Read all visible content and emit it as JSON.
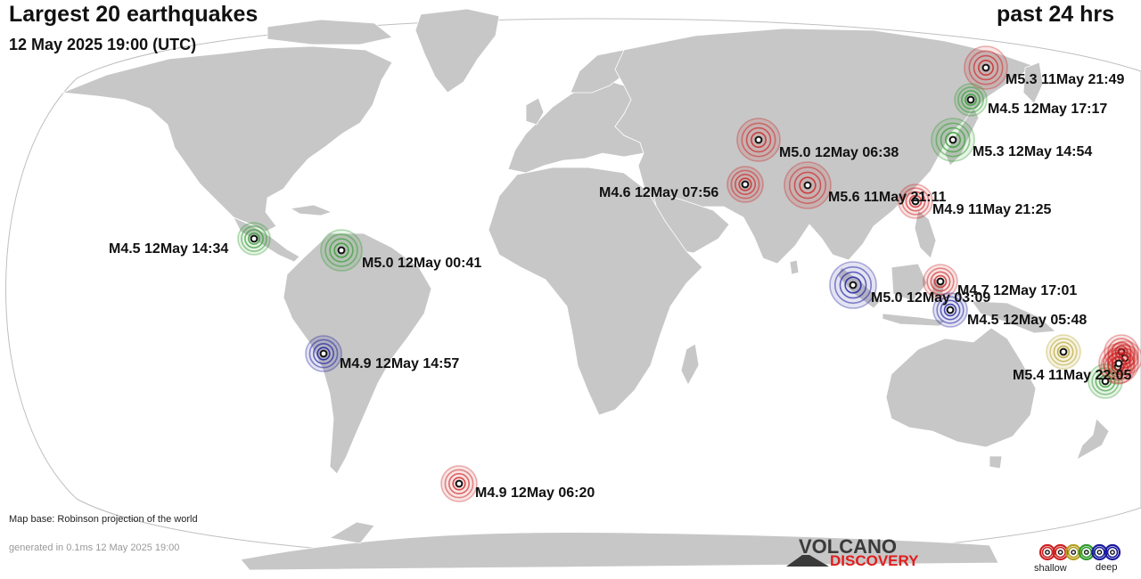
{
  "header": {
    "title": "Largest 20 earthquakes",
    "subtitle": "12 May 2025 19:00 (UTC)",
    "period": "past 24 hrs"
  },
  "footer": {
    "map_base": "Map base: Robinson projection of the world",
    "generated": "generated in 0.1ms 12 May 2025 19:00"
  },
  "logo": {
    "line1": "VOLCANO",
    "line2": "DISCOVERY"
  },
  "legend": {
    "shallow": "shallow",
    "deep": "deep",
    "depth_colors": [
      "#cc2222",
      "#cc2222",
      "#b3a020",
      "#2e9a2e",
      "#1a1a9c",
      "#1a1a9c"
    ]
  },
  "colors": {
    "ocean": "#ffffff",
    "land": "#c7c7c7",
    "shallow": "#cc2222",
    "intermediate": "#b3a020",
    "mid_deep": "#2e9a2e",
    "deep": "#1a1a9c"
  },
  "earthquakes": [
    {
      "label": "M5.3 11May 21:49",
      "lat": 50.1,
      "lon": 157.9,
      "depth": "shallow"
    },
    {
      "label": "M4.5 12May 17:17",
      "lat": 42.3,
      "lon": 143.2,
      "depth": "mid"
    },
    {
      "label": "M5.3 12May 14:54",
      "lat": 35.6,
      "lon": 141.0,
      "depth": "mid"
    },
    {
      "label": "M5.0 12May 06:38",
      "lat": 36.5,
      "lon": 71.2,
      "depth": "shallow"
    },
    {
      "label": "M4.6 12May 07:56",
      "lat": 29.0,
      "lon": 57.9,
      "depth": "shallow"
    },
    {
      "label": "M5.6 11May 21:11",
      "lat": 28.2,
      "lon": 84.6,
      "depth": "shallow"
    },
    {
      "label": "M4.9 11May 21:25",
      "lat": 22.9,
      "lon": 121.4,
      "depth": "shallow"
    },
    {
      "label": "M4.5 12May 14:34",
      "lat": 13.7,
      "lon": -89.5,
      "depth": "mid"
    },
    {
      "label": "M5.0 12May 00:41",
      "lat": 10.3,
      "lon": -72.3,
      "depth": "mid"
    },
    {
      "label": "M4.7 12May 17:01",
      "lat": 1.3,
      "lon": 126.5,
      "depth": "shallow"
    },
    {
      "label": "M5.0 12May 03:09",
      "lat": -0.2,
      "lon": 98.7,
      "depth": "deep"
    },
    {
      "label": "M4.5 12May 05:48",
      "lat": -4.5,
      "lon": 128.0,
      "depth": "deep"
    },
    {
      "label": "M4.9 12May 14:57",
      "lat": -17.3,
      "lon": -69.0,
      "depth": "deep"
    },
    {
      "label": "M5.4 11May 22:05",
      "lat": -18.5,
      "lon": 170.0,
      "depth": "shallow"
    },
    {
      "label": "M4.9 12May 06:20",
      "lat": -56.5,
      "lon": -26.5,
      "depth": "shallow"
    }
  ],
  "extra_markers": [
    {
      "lat": -14.5,
      "lon": 157.8,
      "depth": "intermediate"
    },
    {
      "lat": -15.6,
      "lon": 167.8,
      "depth": "shallow"
    },
    {
      "lat": -17.0,
      "lon": 168.5,
      "depth": "shallow"
    },
    {
      "lat": -20.5,
      "lon": 169.2,
      "depth": "shallow"
    },
    {
      "lat": -22.0,
      "lon": 169.5,
      "depth": "mid"
    }
  ]
}
